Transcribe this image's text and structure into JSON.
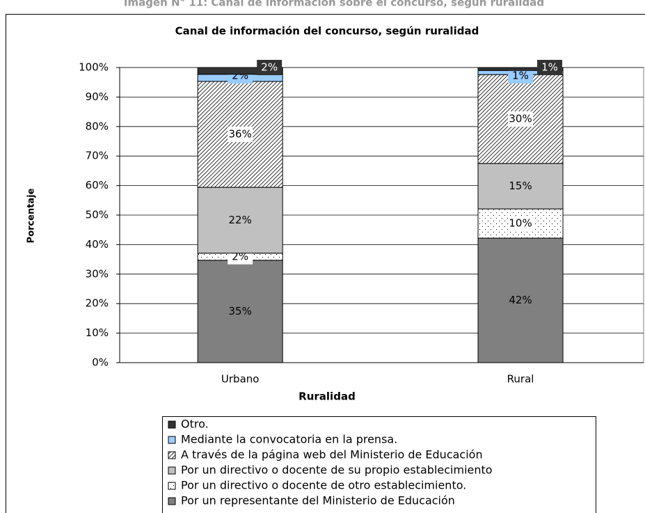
{
  "chart_data": {
    "type": "stacked_bar",
    "caption": "Imagen N° 11: Canal de información sobre el concurso, según ruralidad",
    "title": "Canal de información del concurso, según ruralidad",
    "x_label": "Ruralidad",
    "y_label": "Porcentaje",
    "categories": [
      "Urbano",
      "Rural"
    ],
    "ylim": [
      0,
      100
    ],
    "yticks": [
      {
        "value": 0,
        "label": "0%"
      },
      {
        "value": 10,
        "label": "10%"
      },
      {
        "value": 20,
        "label": "20%"
      },
      {
        "value": 30,
        "label": "30%"
      },
      {
        "value": 40,
        "label": "40%"
      },
      {
        "value": 50,
        "label": "50%"
      },
      {
        "value": 60,
        "label": "60%"
      },
      {
        "value": 70,
        "label": "70%"
      },
      {
        "value": 80,
        "label": "80%"
      },
      {
        "value": 90,
        "label": "90%"
      },
      {
        "value": 100,
        "label": "100%"
      }
    ],
    "grid": true,
    "series": [
      {
        "name": "Por un representante del Ministerio de Educación",
        "color": "#808080",
        "values": [
          34.7,
          42.2
        ],
        "value_labels": [
          "35%",
          "42%"
        ]
      },
      {
        "name": "Por un directivo o docente de otro establecimiento.",
        "color": "#ffffff",
        "pattern": "dots",
        "values": [
          2.4,
          9.9
        ],
        "value_labels": [
          "2%",
          "10%"
        ]
      },
      {
        "name": "Por un directivo o docente de su propio establecimiento",
        "color": "#c0c0c0",
        "values": [
          22.3,
          15.4
        ],
        "value_labels": [
          "22%",
          "15%"
        ]
      },
      {
        "name": "A través de la página web del Ministerio de Educación",
        "color": "#ffffff",
        "pattern": "hatch",
        "values": [
          35.9,
          30.1
        ],
        "value_labels": [
          "36%",
          "30%"
        ]
      },
      {
        "name": "Mediante la convocatoria en la prensa.",
        "color": "#99ccff",
        "values": [
          2.4,
          1.4
        ],
        "value_labels": [
          "2%",
          "1%"
        ]
      },
      {
        "name": "Otro.",
        "color": "#333333",
        "values": [
          2.3,
          1.0
        ],
        "value_labels": [
          "2%",
          "1%"
        ]
      }
    ]
  }
}
